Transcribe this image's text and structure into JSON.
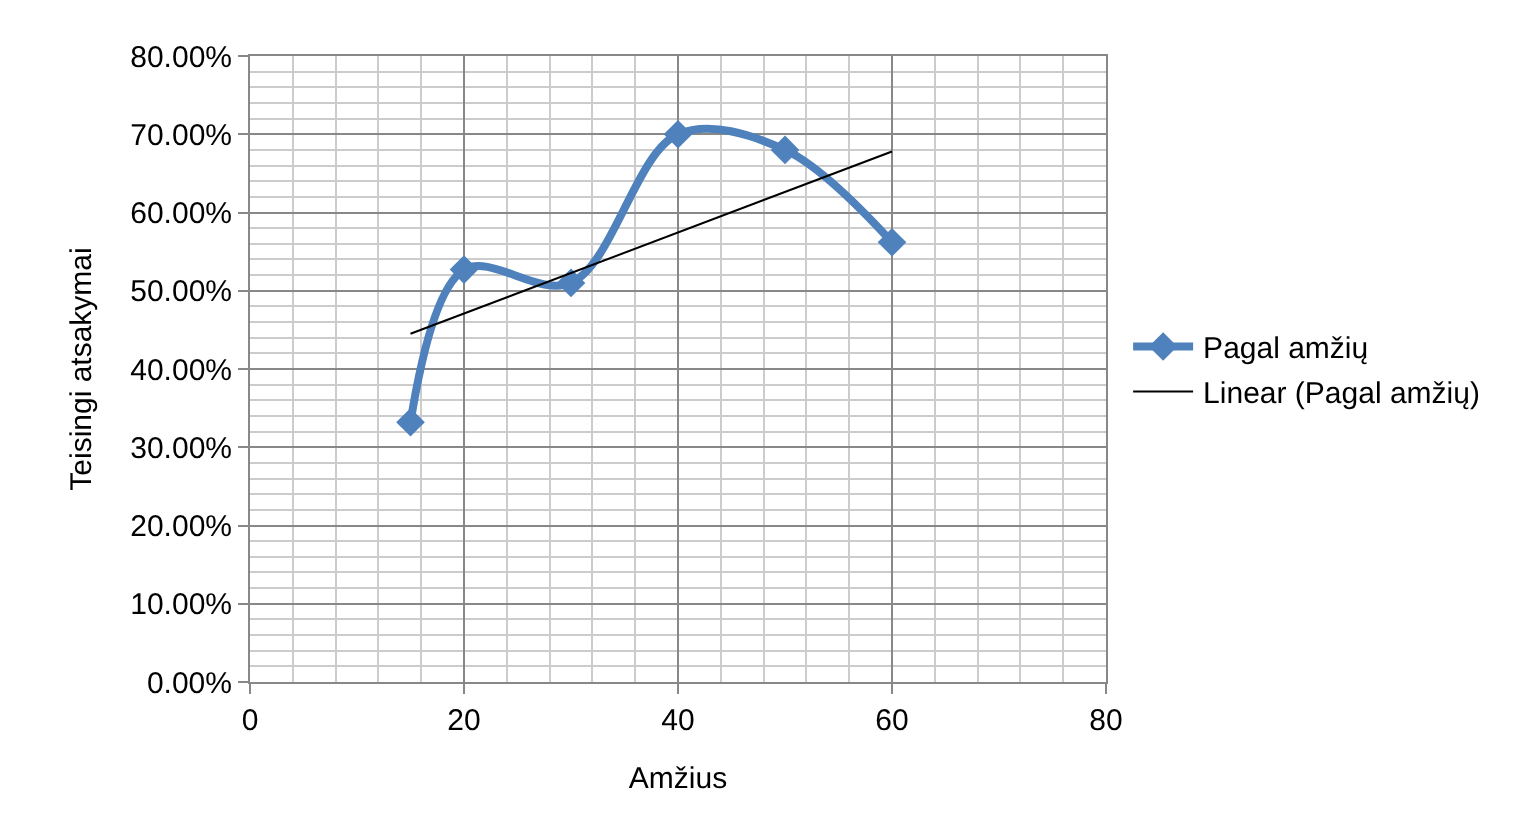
{
  "chart_data": {
    "type": "line",
    "xlabel": "Amžius",
    "ylabel": "Teisingi atsakymai",
    "xlim": [
      0,
      80
    ],
    "xticks": [
      0,
      20,
      40,
      60,
      80
    ],
    "ylim": [
      0,
      0.8
    ],
    "yticks": [
      {
        "value": 0,
        "label": "0.00%"
      },
      {
        "value": 0.1,
        "label": "10.00%"
      },
      {
        "value": 0.2,
        "label": "20.00%"
      },
      {
        "value": 0.3,
        "label": "30.00%"
      },
      {
        "value": 0.4,
        "label": "40.00%"
      },
      {
        "value": 0.5,
        "label": "50.00%"
      },
      {
        "value": 0.6,
        "label": "60.00%"
      },
      {
        "value": 0.7,
        "label": "70.00%"
      },
      {
        "value": 0.8,
        "label": "80.00%"
      }
    ],
    "series": [
      {
        "name": "Pagal amžių",
        "color": "#4f81bd",
        "x": [
          15,
          20,
          30,
          40,
          50,
          60
        ],
        "values": [
          0.332,
          0.527,
          0.51,
          0.7,
          0.68,
          0.562
        ],
        "marker": "diamond"
      },
      {
        "name": "Linear (Pagal amžių)",
        "color": "#000000",
        "type": "line",
        "x": [
          15,
          60
        ],
        "values": [
          0.445,
          0.678
        ],
        "marker": "none"
      }
    ],
    "grid": true,
    "legend": "right"
  }
}
